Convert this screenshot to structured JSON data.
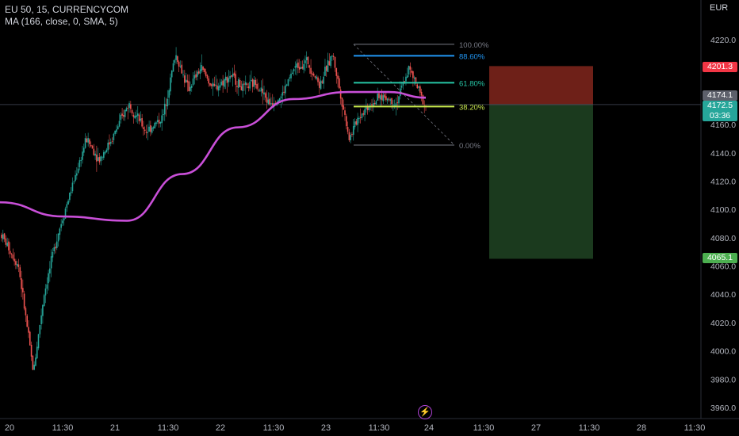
{
  "legend": {
    "line1": "EU 50, 15, CURRENCYCOM",
    "line2": "MA (166, close, 0, SMA, 5)"
  },
  "currency": "EUR",
  "price_tags": {
    "stop": "4201.3",
    "entry": "4174.1",
    "last_price": "4172.5",
    "countdown": "03:36",
    "target": "4065.1"
  },
  "colors": {
    "background": "#000000",
    "up": "#26a69a",
    "down": "#ef5350",
    "ma": "#c94fd8",
    "stop_zone": "#6e2018",
    "target_zone": "#1b3a1e",
    "stop_tag": "#f23645",
    "target_tag": "#4caf50",
    "last_tag": "#26a69a",
    "entry_tag": "#787b86"
  },
  "chart_data": {
    "type": "candlestick",
    "symbol": "EU 50",
    "interval": "15",
    "source": "CURRENCYCOM",
    "currency": "EUR",
    "y_axis": {
      "ticks": [
        "4220.0",
        "4200.0",
        "4180.0",
        "4160.0",
        "4140.0",
        "4120.0",
        "4100.0",
        "4080.0",
        "4060.0",
        "4040.0",
        "4020.0",
        "4000.0",
        "3980.0",
        "3960.0"
      ],
      "ylim": [
        3955,
        4227
      ]
    },
    "x_axis": {
      "ticks": [
        "20",
        "11:30",
        "21",
        "11:30",
        "22",
        "11:30",
        "23",
        "11:30",
        "24",
        "11:30",
        "27",
        "11:30",
        "28",
        "11:30"
      ]
    },
    "price_path": [
      [
        0,
        4082
      ],
      [
        0.04,
        4060
      ],
      [
        0.075,
        3985
      ],
      [
        0.1,
        4040
      ],
      [
        0.13,
        4080
      ],
      [
        0.17,
        4120
      ],
      [
        0.2,
        4150
      ],
      [
        0.23,
        4135
      ],
      [
        0.26,
        4150
      ],
      [
        0.3,
        4175
      ],
      [
        0.34,
        4155
      ],
      [
        0.38,
        4165
      ],
      [
        0.41,
        4210
      ],
      [
        0.44,
        4185
      ],
      [
        0.47,
        4200
      ],
      [
        0.5,
        4185
      ],
      [
        0.54,
        4195
      ],
      [
        0.57,
        4185
      ],
      [
        0.6,
        4190
      ],
      [
        0.63,
        4175
      ],
      [
        0.66,
        4180
      ],
      [
        0.69,
        4200
      ],
      [
        0.72,
        4205
      ],
      [
        0.75,
        4188
      ],
      [
        0.78,
        4210
      ],
      [
        0.8,
        4180
      ],
      [
        0.82,
        4150
      ],
      [
        0.84,
        4165
      ],
      [
        0.87,
        4175
      ],
      [
        0.9,
        4180
      ],
      [
        0.93,
        4175
      ],
      [
        0.96,
        4200
      ],
      [
        1,
        4172
      ]
    ],
    "moving_average": {
      "name": "MA (166, close, 0, SMA, 5)",
      "points": [
        [
          "20",
          4105
        ],
        [
          "11:30",
          4095
        ],
        [
          "21",
          4092
        ],
        [
          "11:30",
          4125
        ],
        [
          "22",
          4158
        ],
        [
          "11:30",
          4178
        ],
        [
          "23",
          4183
        ],
        [
          "11:30",
          4183
        ],
        [
          "11:30+",
          4179
        ]
      ]
    },
    "fibonacci": {
      "levels": [
        {
          "ratio": "100.00%",
          "price": 4216.7,
          "color": "#787b86"
        },
        {
          "ratio": "88.60%",
          "price": 4208.6,
          "color": "#2196f3"
        },
        {
          "ratio": "61.80%",
          "price": 4189.5,
          "color": "#26c6a6"
        },
        {
          "ratio": "38.20%",
          "price": 4172.7,
          "color": "#c6e84d"
        },
        {
          "ratio": "0.00%",
          "price": 4145.5,
          "color": "#787b86"
        }
      ]
    },
    "position": {
      "type": "short",
      "entry": 4174.1,
      "stop": 4201.3,
      "target": 4065.1
    },
    "last_price": 4172.5
  }
}
